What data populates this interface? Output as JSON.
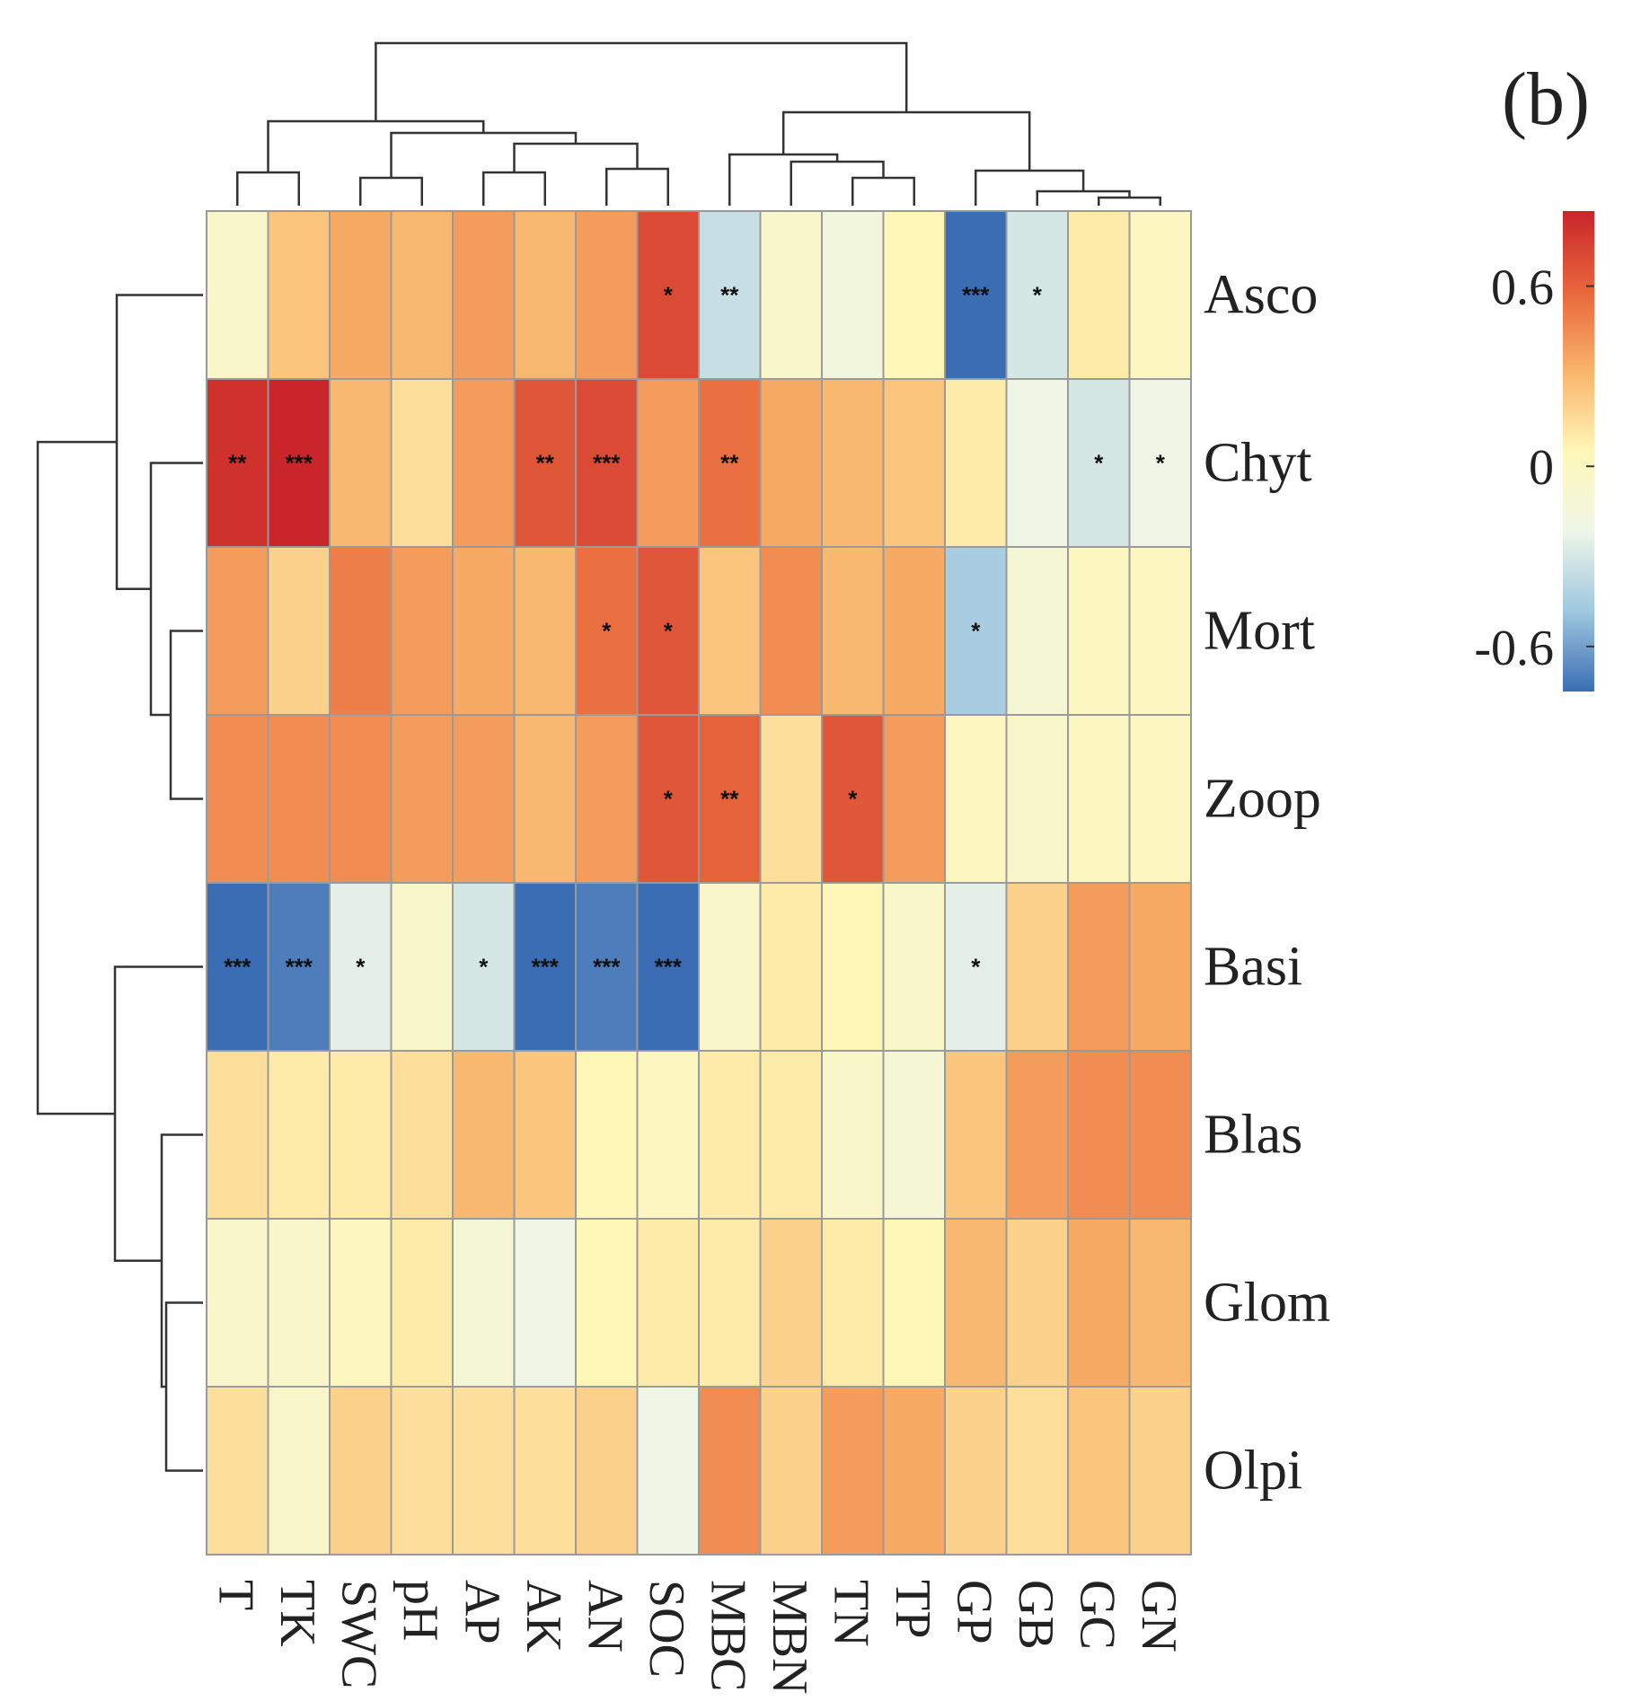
{
  "panel_label": "(b)",
  "chart_data": {
    "type": "heatmap",
    "title": "",
    "rows": [
      "Asco",
      "Chyt",
      "Mort",
      "Zoop",
      "Basi",
      "Blas",
      "Glom",
      "Olpi"
    ],
    "columns": [
      "T",
      "TK",
      "SWC",
      "pH",
      "AP",
      "AK",
      "AN",
      "SOC",
      "MBC",
      "MBN",
      "TN",
      "TP",
      "GP",
      "GB",
      "GC",
      "GN"
    ],
    "values": [
      [
        -0.05,
        0.25,
        0.35,
        0.3,
        0.4,
        0.3,
        0.4,
        0.7,
        -0.35,
        -0.05,
        -0.15,
        0.05,
        -0.8,
        -0.3,
        0.1,
        0.0
      ],
      [
        0.8,
        0.9,
        0.3,
        0.15,
        0.4,
        0.65,
        0.7,
        0.4,
        0.55,
        0.35,
        0.3,
        0.25,
        0.1,
        -0.2,
        -0.3,
        -0.2
      ],
      [
        0.4,
        0.2,
        0.5,
        0.4,
        0.35,
        0.3,
        0.55,
        0.65,
        0.25,
        0.45,
        0.3,
        0.35,
        -0.45,
        -0.1,
        0.0,
        0.0
      ],
      [
        0.45,
        0.45,
        0.45,
        0.4,
        0.4,
        0.3,
        0.4,
        0.65,
        0.6,
        0.15,
        0.65,
        0.4,
        0.0,
        -0.05,
        0.0,
        0.0
      ],
      [
        -0.8,
        -0.7,
        -0.25,
        -0.05,
        -0.3,
        -0.8,
        -0.7,
        -0.75,
        -0.05,
        0.1,
        0.05,
        -0.05,
        -0.25,
        0.2,
        0.4,
        0.35
      ],
      [
        0.15,
        0.1,
        0.1,
        0.15,
        0.3,
        0.25,
        0.05,
        0.0,
        0.1,
        0.1,
        -0.05,
        -0.1,
        0.25,
        0.4,
        0.45,
        0.45
      ],
      [
        -0.05,
        -0.05,
        0.0,
        0.1,
        -0.1,
        -0.2,
        0.05,
        0.1,
        0.1,
        0.2,
        0.1,
        0.05,
        0.3,
        0.2,
        0.35,
        0.3
      ],
      [
        0.15,
        -0.05,
        0.2,
        0.15,
        0.15,
        0.15,
        0.2,
        -0.2,
        0.45,
        0.2,
        0.4,
        0.35,
        0.2,
        0.15,
        0.25,
        0.2
      ]
    ],
    "significance": [
      [
        "",
        "",
        "",
        "",
        "",
        "",
        "",
        "*",
        "**",
        "",
        "",
        "",
        "***",
        "*",
        "",
        ""
      ],
      [
        "**",
        "***",
        "",
        "",
        "",
        "**",
        "***",
        "",
        "**",
        "",
        "",
        "",
        "",
        "",
        "*",
        "*"
      ],
      [
        "",
        "",
        "",
        "",
        "",
        "",
        "*",
        "*",
        "",
        "",
        "",
        "",
        "*",
        "",
        "",
        ""
      ],
      [
        "",
        "",
        "",
        "",
        "",
        "",
        "",
        "*",
        "**",
        "",
        "*",
        "",
        "",
        "",
        "",
        ""
      ],
      [
        "***",
        "***",
        "*",
        "",
        "*",
        "***",
        "***",
        "***",
        "",
        "",
        "",
        "",
        "*",
        "",
        "",
        ""
      ],
      [
        "",
        "",
        "",
        "",
        "",
        "",
        "",
        "",
        "",
        "",
        "",
        "",
        "",
        "",
        "",
        ""
      ],
      [
        "",
        "",
        "",
        "",
        "",
        "",
        "",
        "",
        "",
        "",
        "",
        "",
        "",
        "",
        "",
        ""
      ],
      [
        "",
        "",
        "",
        "",
        "",
        "",
        "",
        "",
        "",
        "",
        "",
        "",
        "",
        "",
        "",
        ""
      ]
    ],
    "colorbar": {
      "range": [
        -0.75,
        0.85
      ],
      "ticks": [
        0.6,
        0,
        -0.6
      ],
      "tick_labels": [
        "0.6",
        "0",
        "-0.6"
      ],
      "colors": [
        "#3a6db3",
        "#9fc7df",
        "#eef6e8",
        "#fff7b8",
        "#f9b46a",
        "#e8663c",
        "#c9252a"
      ]
    }
  }
}
